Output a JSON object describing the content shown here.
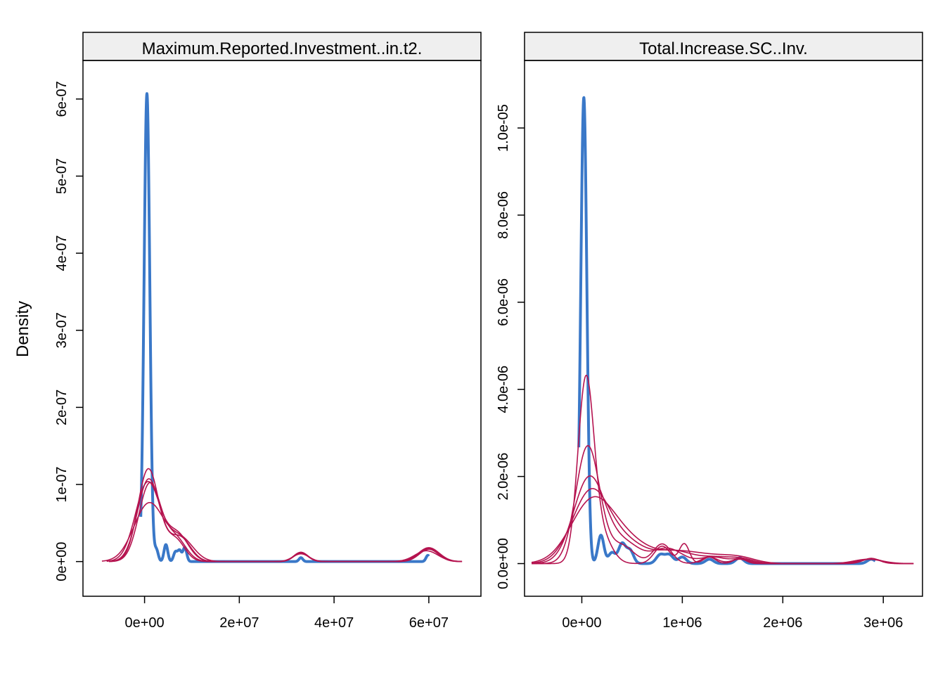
{
  "chart_data": {
    "type": "line",
    "ylabel": "Density",
    "colors": {
      "observed": "#3A78C8",
      "imputed": "#B5134F",
      "strip": "#EFEFEF"
    },
    "legend": "none",
    "grid": false,
    "panels": [
      {
        "title": "Maximum.Reported.Investment..in.t2.",
        "xlim": [
          -13000000,
          71000000
        ],
        "ylim": [
          -4.5e-08,
          6.5e-07
        ],
        "x_ticks": [
          0,
          20000000,
          40000000,
          60000000
        ],
        "x_tick_labels": [
          "0e+00",
          "2e+07",
          "4e+07",
          "6e+07"
        ],
        "y_ticks": [
          0,
          1e-07,
          2e-07,
          3e-07,
          4e-07,
          5e-07,
          6e-07
        ],
        "y_tick_labels": [
          "0e+00",
          "1e-07",
          "2e-07",
          "3e-07",
          "4e-07",
          "5e-07",
          "6e-07"
        ],
        "series": [
          {
            "kind": "observed",
            "x_range": [
              -800000,
              60000000
            ],
            "components": [
              {
                "mu": 500000,
                "sd": 600000,
                "amp": 6.07e-07
              },
              {
                "mu": 2500000,
                "sd": 400000,
                "amp": 1.5e-08
              },
              {
                "mu": 4500000,
                "sd": 400000,
                "amp": 2.2e-08
              },
              {
                "mu": 6500000,
                "sd": 400000,
                "amp": 1.2e-08
              },
              {
                "mu": 7400000,
                "sd": 400000,
                "amp": 1.4e-08
              },
              {
                "mu": 8500000,
                "sd": 400000,
                "amp": 1.8e-08
              },
              {
                "mu": 33000000,
                "sd": 400000,
                "amp": 5e-09
              },
              {
                "mu": 59800000,
                "sd": 400000,
                "amp": 8e-09
              }
            ]
          },
          {
            "kind": "imputed",
            "x_range": [
              -7500000,
              67000000
            ],
            "components": [
              {
                "mu": 800000,
                "sd": 2200000,
                "amp": 1.2e-07
              },
              {
                "mu": 6500000,
                "sd": 2000000,
                "amp": 2.8e-08
              },
              {
                "mu": 33000000,
                "sd": 1500000,
                "amp": 1.1e-08
              },
              {
                "mu": 60000000,
                "sd": 2000000,
                "amp": 1.6e-08
              }
            ]
          },
          {
            "kind": "imputed",
            "x_range": [
              -8000000,
              67000000
            ],
            "components": [
              {
                "mu": 700000,
                "sd": 2600000,
                "amp": 1.03e-07
              },
              {
                "mu": 7000000,
                "sd": 2300000,
                "amp": 3.4e-08
              },
              {
                "mu": 33000000,
                "sd": 1500000,
                "amp": 1.2e-08
              },
              {
                "mu": 60000000,
                "sd": 2200000,
                "amp": 1.8e-08
              }
            ]
          },
          {
            "kind": "imputed",
            "x_range": [
              -9000000,
              67000000
            ],
            "components": [
              {
                "mu": 1000000,
                "sd": 3200000,
                "amp": 7.6e-08
              },
              {
                "mu": 8000000,
                "sd": 2500000,
                "amp": 2.6e-08
              },
              {
                "mu": 33000000,
                "sd": 1700000,
                "amp": 1e-08
              },
              {
                "mu": 59500000,
                "sd": 2400000,
                "amp": 1.4e-08
              }
            ]
          },
          {
            "kind": "imputed",
            "x_range": [
              -7000000,
              67000000
            ],
            "components": [
              {
                "mu": 900000,
                "sd": 2400000,
                "amp": 1.07e-07
              },
              {
                "mu": 7500000,
                "sd": 2200000,
                "amp": 3.1e-08
              },
              {
                "mu": 33000000,
                "sd": 1500000,
                "amp": 1.1e-08
              },
              {
                "mu": 60000000,
                "sd": 2000000,
                "amp": 1.7e-08
              }
            ]
          },
          {
            "kind": "imputed",
            "x_range": [
              -7500000,
              67000000
            ],
            "components": [
              {
                "mu": 1100000,
                "sd": 2300000,
                "amp": 1.01e-07
              },
              {
                "mu": 6500000,
                "sd": 2200000,
                "amp": 3e-08
              },
              {
                "mu": 33000000,
                "sd": 1500000,
                "amp": 1.2e-08
              },
              {
                "mu": 60000000,
                "sd": 2100000,
                "amp": 1.6e-08
              }
            ]
          }
        ]
      },
      {
        "title": "Total.Increase.SC..Inv.",
        "xlim": [
          -570000,
          3390000
        ],
        "ylim": [
          -7.5e-07,
          1.155e-05
        ],
        "x_ticks": [
          0,
          1000000,
          2000000,
          3000000
        ],
        "x_tick_labels": [
          "0e+00",
          "1e+06",
          "2e+06",
          "3e+06"
        ],
        "y_ticks": [
          0,
          2e-06,
          4e-06,
          6e-06,
          8e-06,
          1e-05
        ],
        "y_tick_labels": [
          "0.0e+00",
          "2.0e-06",
          "4.0e-06",
          "6.0e-06",
          "8.0e-06",
          "1.0e-05"
        ],
        "series": [
          {
            "kind": "observed",
            "x_range": [
              -30000,
              2920000
            ],
            "components": [
              {
                "mu": 20000,
                "sd": 30000,
                "amp": 1.07e-05
              },
              {
                "mu": 190000,
                "sd": 30000,
                "amp": 6.5e-07
              },
              {
                "mu": 300000,
                "sd": 35000,
                "amp": 2.5e-07
              },
              {
                "mu": 400000,
                "sd": 35000,
                "amp": 4.5e-07
              },
              {
                "mu": 480000,
                "sd": 35000,
                "amp": 3e-07
              },
              {
                "mu": 780000,
                "sd": 40000,
                "amp": 2e-07
              },
              {
                "mu": 870000,
                "sd": 40000,
                "amp": 2e-07
              },
              {
                "mu": 1000000,
                "sd": 40000,
                "amp": 1.5e-07
              },
              {
                "mu": 1270000,
                "sd": 40000,
                "amp": 1e-07
              },
              {
                "mu": 1570000,
                "sd": 40000,
                "amp": 1.3e-07
              },
              {
                "mu": 2880000,
                "sd": 40000,
                "amp": 1e-07
              }
            ]
          },
          {
            "kind": "imputed",
            "x_range": [
              -500000,
              3300000
            ],
            "components": [
              {
                "mu": 40000,
                "sd": 80000,
                "amp": 4.15e-06
              },
              {
                "mu": 200000,
                "sd": 100000,
                "amp": 6e-07
              },
              {
                "mu": 800000,
                "sd": 80000,
                "amp": 4e-07
              },
              {
                "mu": 1020000,
                "sd": 50000,
                "amp": 4.5e-07
              },
              {
                "mu": 1270000,
                "sd": 60000,
                "amp": 1.5e-07
              },
              {
                "mu": 1570000,
                "sd": 60000,
                "amp": 1.2e-07
              },
              {
                "mu": 2880000,
                "sd": 80000,
                "amp": 1.2e-07
              }
            ]
          },
          {
            "kind": "imputed",
            "x_range": [
              -500000,
              3300000
            ],
            "components": [
              {
                "mu": 60000,
                "sd": 120000,
                "amp": 2.7e-06
              },
              {
                "mu": 400000,
                "sd": 120000,
                "amp": 4e-07
              },
              {
                "mu": 800000,
                "sd": 90000,
                "amp": 4.5e-07
              },
              {
                "mu": 1270000,
                "sd": 80000,
                "amp": 1.5e-07
              },
              {
                "mu": 1570000,
                "sd": 80000,
                "amp": 1e-07
              },
              {
                "mu": 2880000,
                "sd": 90000,
                "amp": 1.1e-07
              }
            ]
          },
          {
            "kind": "imputed",
            "x_range": [
              -500000,
              3300000
            ],
            "components": [
              {
                "mu": 80000,
                "sd": 160000,
                "amp": 2e-06
              },
              {
                "mu": 450000,
                "sd": 140000,
                "amp": 4e-07
              },
              {
                "mu": 850000,
                "sd": 150000,
                "amp": 3.5e-07
              },
              {
                "mu": 1300000,
                "sd": 120000,
                "amp": 1.5e-07
              },
              {
                "mu": 1580000,
                "sd": 100000,
                "amp": 1e-07
              },
              {
                "mu": 2880000,
                "sd": 100000,
                "amp": 1.1e-07
              }
            ]
          },
          {
            "kind": "imputed",
            "x_range": [
              -500000,
              3300000
            ],
            "components": [
              {
                "mu": 100000,
                "sd": 190000,
                "amp": 1.7e-06
              },
              {
                "mu": 480000,
                "sd": 160000,
                "amp": 3.5e-07
              },
              {
                "mu": 900000,
                "sd": 200000,
                "amp": 3e-07
              },
              {
                "mu": 1350000,
                "sd": 160000,
                "amp": 1.3e-07
              },
              {
                "mu": 1600000,
                "sd": 120000,
                "amp": 9e-08
              },
              {
                "mu": 2860000,
                "sd": 120000,
                "amp": 1e-07
              }
            ]
          },
          {
            "kind": "imputed",
            "x_range": [
              -500000,
              3300000
            ],
            "components": [
              {
                "mu": 120000,
                "sd": 220000,
                "amp": 1.5e-06
              },
              {
                "mu": 500000,
                "sd": 180000,
                "amp": 3e-07
              },
              {
                "mu": 950000,
                "sd": 250000,
                "amp": 2.8e-07
              },
              {
                "mu": 1400000,
                "sd": 200000,
                "amp": 1.2e-07
              },
              {
                "mu": 1600000,
                "sd": 150000,
                "amp": 8e-08
              },
              {
                "mu": 2850000,
                "sd": 140000,
                "amp": 1e-07
              }
            ]
          }
        ]
      }
    ]
  }
}
